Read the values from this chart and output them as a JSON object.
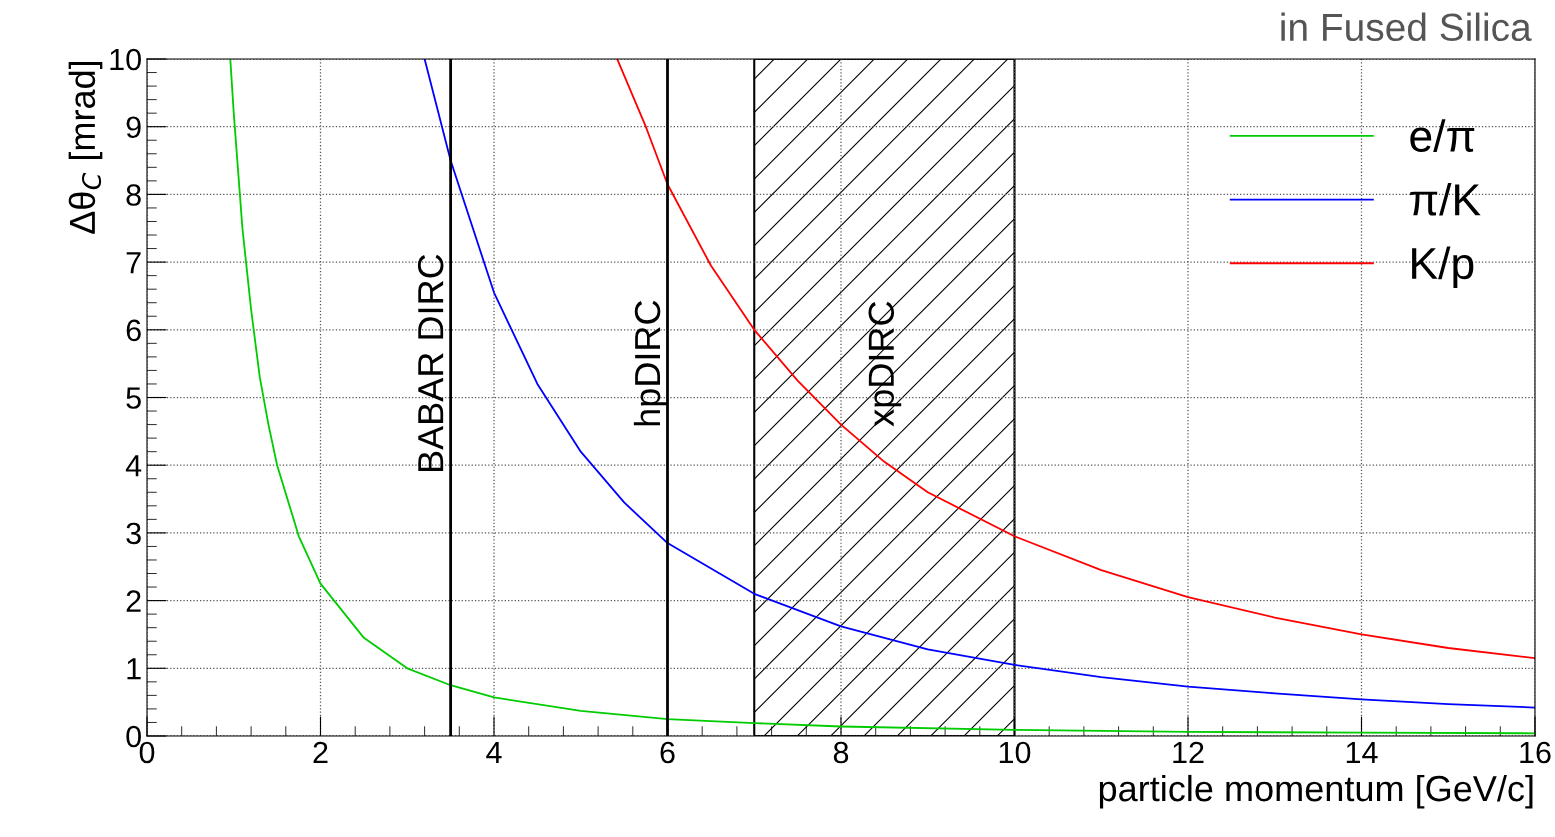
{
  "chart_data": {
    "type": "line",
    "xlabel": "particle momentum [GeV/c]",
    "ylabel": "Δθ$_{C}$ [mrad]",
    "annotations": [
      "in Fused Silica"
    ],
    "xlim": [
      0,
      16
    ],
    "ylim": [
      0,
      10
    ],
    "xticks": [
      0,
      2,
      4,
      6,
      8,
      10,
      12,
      14,
      16
    ],
    "yticks": [
      0,
      1,
      2,
      3,
      4,
      5,
      6,
      7,
      8,
      9,
      10
    ],
    "grid": true,
    "legend": "top right",
    "line_style": "solid",
    "marker": "none",
    "series": [
      {
        "name": "e/π",
        "color": "#00cc00",
        "x": [
          0.96,
          1.0,
          1.1,
          1.2,
          1.3,
          1.4,
          1.5,
          1.75,
          2,
          2.5,
          3,
          3.5,
          4,
          5,
          6,
          7,
          8,
          10,
          12,
          14,
          16
        ],
        "values": [
          10,
          9.2,
          7.5,
          6.3,
          5.3,
          4.6,
          4.0,
          2.95,
          2.25,
          1.45,
          1.0,
          0.75,
          0.57,
          0.37,
          0.25,
          0.19,
          0.14,
          0.09,
          0.06,
          0.05,
          0.04
        ]
      },
      {
        "name": "π/K",
        "color": "#0000ff",
        "x": [
          3.2,
          3.5,
          4,
          4.5,
          5,
          5.5,
          6,
          7,
          8,
          9,
          10,
          11,
          12,
          13,
          14,
          15,
          16
        ],
        "values": [
          10,
          8.5,
          6.55,
          5.2,
          4.2,
          3.45,
          2.85,
          2.1,
          1.62,
          1.28,
          1.05,
          0.87,
          0.73,
          0.63,
          0.54,
          0.47,
          0.42
        ]
      },
      {
        "name": "K/p",
        "color": "#ff0000",
        "x": [
          5.42,
          5.75,
          6,
          6.5,
          7,
          7.5,
          8,
          8.5,
          9,
          10,
          11,
          12,
          13,
          14,
          15,
          16
        ],
        "values": [
          10,
          9.0,
          8.15,
          6.95,
          6.0,
          5.25,
          4.6,
          4.05,
          3.6,
          2.95,
          2.45,
          2.05,
          1.75,
          1.5,
          1.3,
          1.15
        ]
      }
    ],
    "ref_lines": [
      {
        "axis": "x",
        "value": 3.5,
        "label": "BABAR DIRC",
        "color": "#000000",
        "line_style": "solid"
      },
      {
        "axis": "x",
        "value": 6,
        "label": "hpDIRC",
        "color": "#000000",
        "line_style": "solid"
      }
    ],
    "bands": [
      {
        "axis": "x",
        "from": 7,
        "to": 10,
        "label": "xpDIRC",
        "color": "#000000"
      }
    ]
  }
}
